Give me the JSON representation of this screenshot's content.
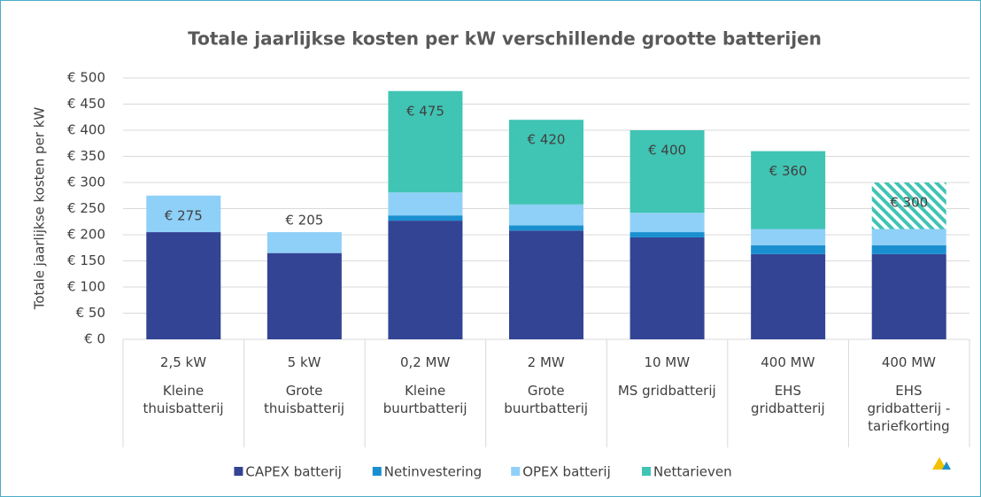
{
  "chart_data": {
    "type": "stacked_bar",
    "title": "Totale jaarlijkse kosten per kW verschillende grootte batterijen",
    "y_label": "Totale jaarlijkse kosten per kW",
    "sizes": [
      "2,5 kW",
      "5 kW",
      "0,2 MW",
      "2 MW",
      "10 MW",
      "400 MW",
      "400 MW"
    ],
    "categories": [
      "Kleine\nthuisbatterij",
      "Grote\nthuisbatterij",
      "Kleine\nbuurtbatterij",
      "Grote\nbuurtbatterij",
      "MS gridbatterij",
      "EHS\ngridbatterij",
      "EHS\ngridbatterij -\ntariefkorting"
    ],
    "series": [
      {
        "name": "CAPEX batterij",
        "color": "#334494",
        "values": [
          205,
          165,
          227,
          208,
          195,
          163,
          163
        ]
      },
      {
        "name": "Netinvestering",
        "color": "#1a8fd0",
        "values": [
          0,
          0,
          10,
          10,
          10,
          17,
          17
        ]
      },
      {
        "name": "OPEX batterij",
        "color": "#8fd0f8",
        "values": [
          70,
          40,
          44,
          40,
          37,
          31,
          31
        ]
      },
      {
        "name": "Nettarieven",
        "color": "#40c4b4",
        "values": [
          0,
          0,
          194,
          162,
          158,
          149,
          89
        ],
        "hatch": [
          false,
          false,
          false,
          false,
          false,
          false,
          true
        ]
      }
    ],
    "total_labels": [
      "€ 275",
      "€ 205",
      "€ 475",
      "€ 420",
      "€ 400",
      "€ 360",
      "€ 300"
    ],
    "ylim": [
      0,
      500
    ],
    "yticks": [
      {
        "value": 0,
        "label": "€ 0"
      },
      {
        "value": 50,
        "label": "€ 50"
      },
      {
        "value": 100,
        "label": "€ 100"
      },
      {
        "value": 150,
        "label": "€ 150"
      },
      {
        "value": 200,
        "label": "€ 200"
      },
      {
        "value": 250,
        "label": "€ 250"
      },
      {
        "value": 300,
        "label": "€ 300"
      },
      {
        "value": 350,
        "label": "€ 350"
      },
      {
        "value": 400,
        "label": "€ 400"
      },
      {
        "value": 450,
        "label": "€ 450"
      },
      {
        "value": 500,
        "label": "€ 500"
      }
    ],
    "grid": true
  }
}
